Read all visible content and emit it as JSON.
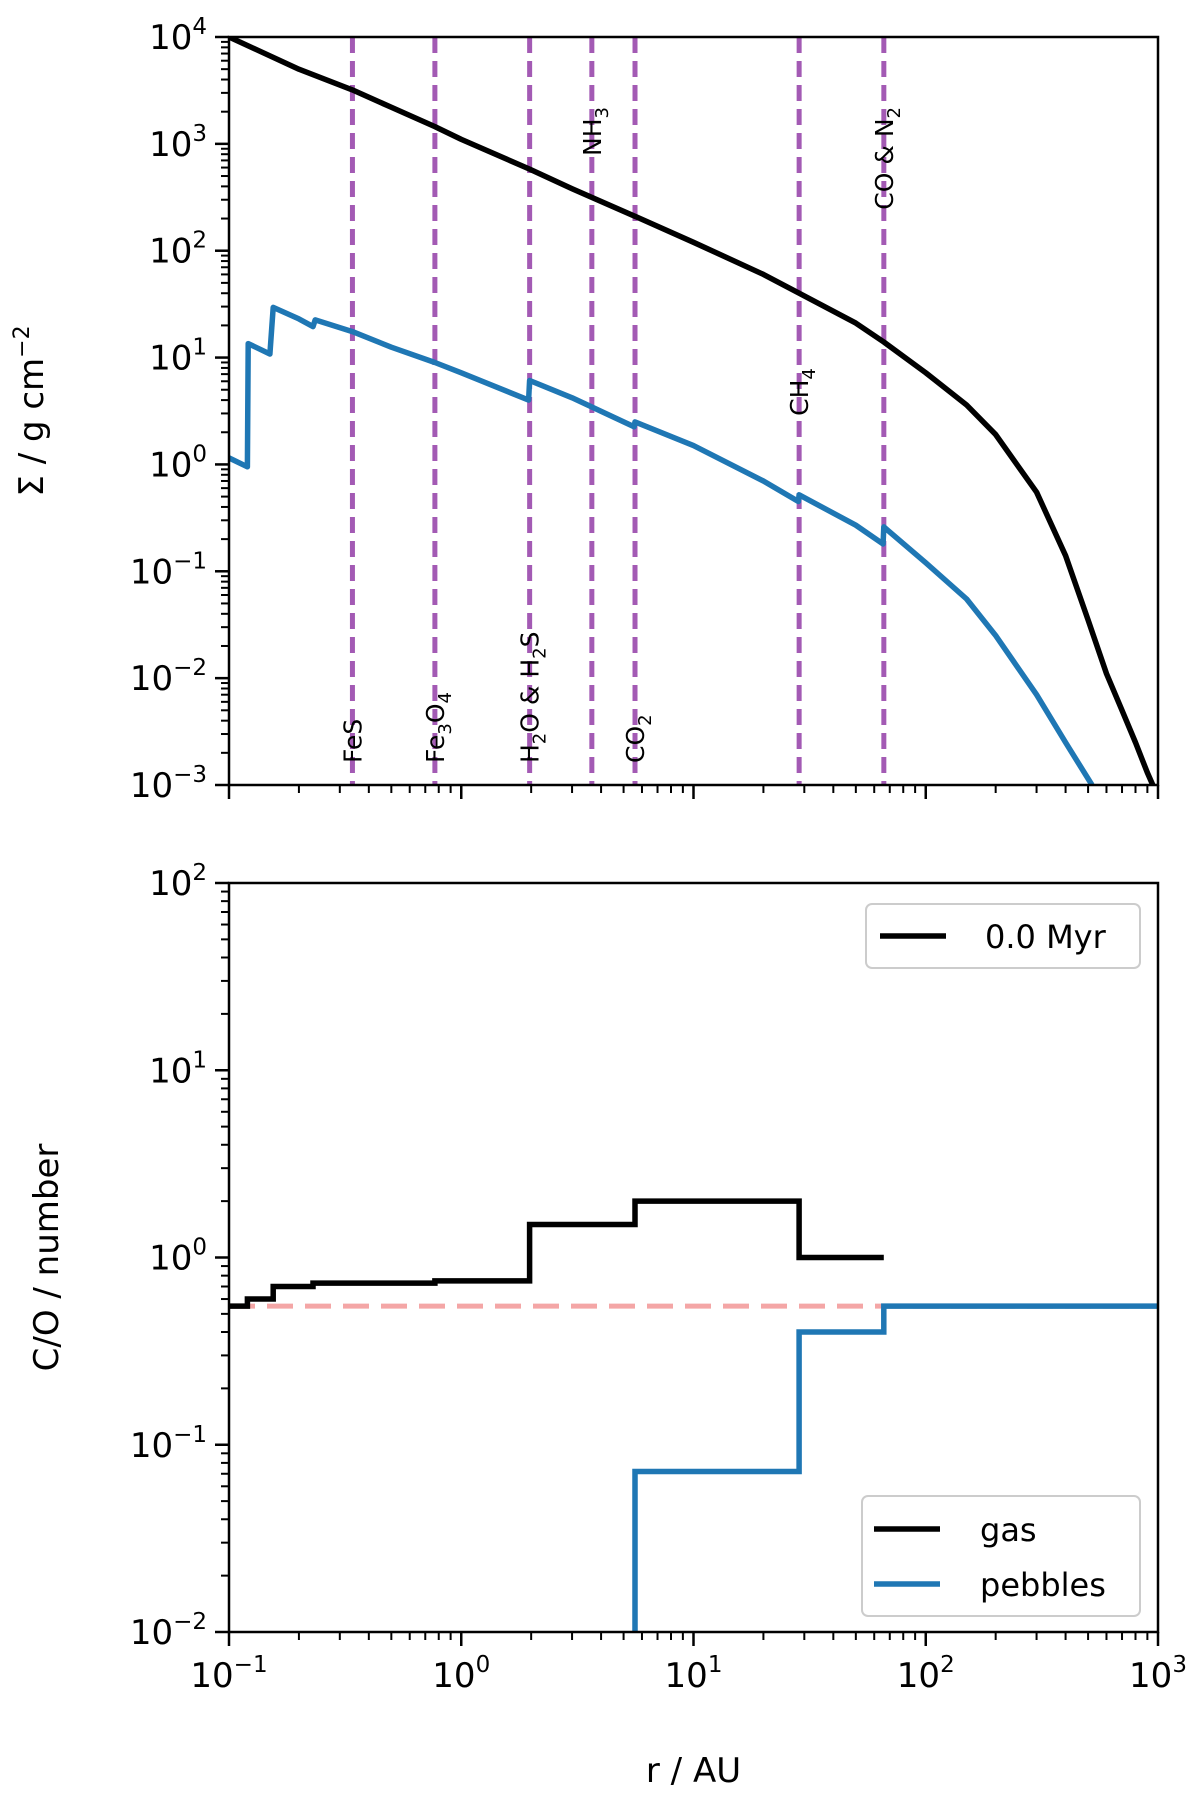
{
  "chart_data": [
    {
      "type": "line",
      "panel": "top",
      "xscale": "log",
      "yscale": "log",
      "xlim": [
        0.1,
        1000
      ],
      "ylim": [
        0.001,
        10000
      ],
      "xlabel": "",
      "ylabel_parts": [
        "Σ / g cm",
        "−2"
      ],
      "yticks": [
        {
          "base": "10",
          "exp": "−3"
        },
        {
          "base": "10",
          "exp": "−2"
        },
        {
          "base": "10",
          "exp": "−1"
        },
        {
          "base": "10",
          "exp": "0"
        },
        {
          "base": "10",
          "exp": "1"
        },
        {
          "base": "10",
          "exp": "2"
        },
        {
          "base": "10",
          "exp": "3"
        },
        {
          "base": "10",
          "exp": "4"
        }
      ],
      "snowlines": [
        {
          "r": 0.34,
          "label_parts": [
            [
              "FeS",
              ""
            ]
          ],
          "label_pos": "bottom"
        },
        {
          "r": 0.77,
          "label_parts": [
            [
              "Fe",
              ""
            ],
            [
              "3",
              "sub"
            ],
            [
              "O",
              ""
            ],
            [
              "4",
              "sub"
            ]
          ],
          "label_pos": "bottom"
        },
        {
          "r": 1.97,
          "label_parts": [
            [
              "H",
              ""
            ],
            [
              "2",
              "sub"
            ],
            [
              "O & H",
              ""
            ],
            [
              "2",
              "sub"
            ],
            [
              "S",
              ""
            ]
          ],
          "label_pos": "bottom"
        },
        {
          "r": 3.65,
          "label_parts": [
            [
              "NH",
              ""
            ],
            [
              "3",
              "sub"
            ]
          ],
          "label_pos": "top"
        },
        {
          "r": 5.6,
          "label_parts": [
            [
              "CO",
              ""
            ],
            [
              "2",
              "sub"
            ]
          ],
          "label_pos": "bottom"
        },
        {
          "r": 28.5,
          "label_parts": [
            [
              "CH",
              ""
            ],
            [
              "4",
              "sub"
            ]
          ],
          "label_pos": "middle"
        },
        {
          "r": 66.0,
          "label_parts": [
            [
              "CO & N",
              ""
            ],
            [
              "2",
              "sub"
            ]
          ],
          "label_pos": "top"
        }
      ],
      "series": [
        {
          "name": "gas",
          "color": "#000000",
          "points": [
            [
              0.1,
              10000
            ],
            [
              0.2,
              5000
            ],
            [
              0.34,
              3200
            ],
            [
              0.5,
              2200
            ],
            [
              0.77,
              1450
            ],
            [
              1.0,
              1100
            ],
            [
              1.97,
              580
            ],
            [
              3.0,
              380
            ],
            [
              5.6,
              210
            ],
            [
              10,
              120
            ],
            [
              20,
              60
            ],
            [
              28.5,
              40
            ],
            [
              50,
              21
            ],
            [
              66,
              14
            ],
            [
              100,
              7.2
            ],
            [
              150,
              3.6
            ],
            [
              200,
              1.9
            ],
            [
              300,
              0.55
            ],
            [
              400,
              0.14
            ],
            [
              500,
              0.035
            ],
            [
              600,
              0.011
            ],
            [
              700,
              0.005
            ],
            [
              800,
              0.0025
            ],
            [
              900,
              0.0013
            ],
            [
              950,
              0.001
            ]
          ]
        },
        {
          "name": "pebbles",
          "color": "#1f77b4",
          "points": [
            [
              0.1,
              1.15
            ],
            [
              0.12,
              0.95
            ],
            [
              0.121,
              13.5
            ],
            [
              0.15,
              10.8
            ],
            [
              0.155,
              29.5
            ],
            [
              0.2,
              23
            ],
            [
              0.23,
              19.5
            ],
            [
              0.235,
              22.5
            ],
            [
              0.34,
              17.5
            ],
            [
              0.5,
              12.5
            ],
            [
              0.77,
              9
            ],
            [
              1.0,
              7.2
            ],
            [
              1.95,
              4.0
            ],
            [
              1.97,
              6.1
            ],
            [
              3.0,
              4.2
            ],
            [
              5.55,
              2.25
            ],
            [
              5.6,
              2.5
            ],
            [
              10,
              1.5
            ],
            [
              20,
              0.7
            ],
            [
              28.3,
              0.45
            ],
            [
              28.5,
              0.52
            ],
            [
              50,
              0.27
            ],
            [
              65.5,
              0.18
            ],
            [
              66,
              0.26
            ],
            [
              100,
              0.12
            ],
            [
              150,
              0.055
            ],
            [
              200,
              0.025
            ],
            [
              300,
              0.007
            ],
            [
              400,
              0.0025
            ],
            [
              520,
              0.001
            ]
          ]
        }
      ]
    },
    {
      "type": "line",
      "panel": "bottom",
      "xscale": "log",
      "yscale": "log",
      "xlim": [
        0.1,
        1000
      ],
      "ylim": [
        0.01,
        100
      ],
      "xlabel": "r / AU",
      "ylabel": "C/O / number",
      "xticks": [
        {
          "base": "10",
          "exp": "−1"
        },
        {
          "base": "10",
          "exp": "0"
        },
        {
          "base": "10",
          "exp": "1"
        },
        {
          "base": "10",
          "exp": "2"
        },
        {
          "base": "10",
          "exp": "3"
        }
      ],
      "yticks": [
        {
          "base": "10",
          "exp": "−2"
        },
        {
          "base": "10",
          "exp": "−1"
        },
        {
          "base": "10",
          "exp": "0"
        },
        {
          "base": "10",
          "exp": "1"
        },
        {
          "base": "10",
          "exp": "2"
        }
      ],
      "legend_time": {
        "label": "0.0 Myr",
        "color": "#000000",
        "position": "top-right"
      },
      "legend_species": {
        "position": "bottom-right",
        "entries": [
          "gas",
          "pebbles"
        ]
      },
      "reference_line": {
        "value": 0.55,
        "color": "#f4a6a6",
        "style": "dashed"
      },
      "series": [
        {
          "name": "gas",
          "color": "#000000",
          "points": [
            [
              0.1,
              0.55
            ],
            [
              0.12,
              0.55
            ],
            [
              0.12,
              0.6
            ],
            [
              0.155,
              0.6
            ],
            [
              0.155,
              0.7
            ],
            [
              0.23,
              0.7
            ],
            [
              0.23,
              0.73
            ],
            [
              0.77,
              0.73
            ],
            [
              0.77,
              0.75
            ],
            [
              1.97,
              0.75
            ],
            [
              1.97,
              1.5
            ],
            [
              5.6,
              1.5
            ],
            [
              5.6,
              2.0
            ],
            [
              28.5,
              2.0
            ],
            [
              28.5,
              1.0
            ],
            [
              66,
              1.0
            ]
          ]
        },
        {
          "name": "pebbles",
          "color": "#1f77b4",
          "points": [
            [
              5.6,
              0.01
            ],
            [
              5.6,
              0.072
            ],
            [
              28.5,
              0.072
            ],
            [
              28.5,
              0.4
            ],
            [
              66,
              0.4
            ],
            [
              66,
              0.55
            ],
            [
              1000,
              0.55
            ]
          ]
        }
      ]
    }
  ]
}
